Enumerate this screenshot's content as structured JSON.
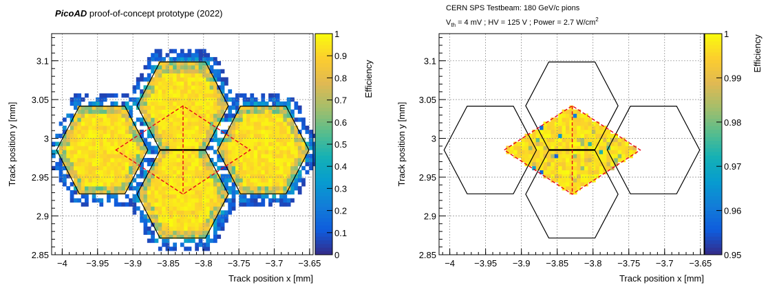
{
  "chart_data": [
    {
      "type": "heatmap",
      "title_bold": "PicoAD",
      "title_rest": " proof-of-concept prototype (2022)",
      "xlabel": "Track position x [mm]",
      "ylabel": "Track position y [mm]",
      "zlabel": "Efficiency",
      "xlim": [
        -4.015,
        -3.645
      ],
      "ylim": [
        2.85,
        3.135
      ],
      "zlim": [
        0,
        1
      ],
      "xticks": [
        "-4",
        "-3.95",
        "-3.9",
        "-3.85",
        "-3.8",
        "-3.75",
        "-3.7",
        "-3.65"
      ],
      "yticks": [
        "2.85",
        "2.9",
        "2.95",
        "3",
        "3.05",
        "3.1"
      ],
      "zticks": [
        "0",
        "0.1",
        "0.2",
        "0.3",
        "0.4",
        "0.5",
        "0.6",
        "0.7",
        "0.8",
        "0.9",
        "1"
      ],
      "grid": true,
      "colormap": "viridis-like (blue to yellow)",
      "overlay": "hexagonal pixel outlines (black) with dashed triangular fiducial region (red)"
    },
    {
      "type": "heatmap",
      "title_line1": "CERN SPS Testbeam: 180 GeV/c pions",
      "title_line2_a": "V",
      "title_line2_sub": "th",
      "title_line2_b": " = 4 mV ; HV = 125 V ; Power = 2.7 W/cm",
      "title_line2_sup": "2",
      "xlabel": "Track position x [mm]",
      "ylabel": "Track position y [mm]",
      "zlabel": "Efficiency",
      "xlim": [
        -4.015,
        -3.645
      ],
      "ylim": [
        2.85,
        3.135
      ],
      "zlim": [
        0.95,
        1
      ],
      "xticks": [
        "-4",
        "-3.95",
        "-3.9",
        "-3.85",
        "-3.8",
        "-3.75",
        "-3.7",
        "-3.65"
      ],
      "yticks": [
        "2.85",
        "2.9",
        "2.95",
        "3",
        "3.05",
        "3.1"
      ],
      "zticks": [
        "0.95",
        "0.96",
        "0.97",
        "0.98",
        "0.99",
        "1"
      ],
      "grid": true,
      "colormap": "viridis-like (blue to yellow)",
      "overlay": "hexagonal pixel outlines (black) with dashed diamond fiducial region (red)"
    }
  ],
  "colors": {
    "accent_dashed": "#e8001c",
    "outline": "#000000",
    "efficiency_high": "#f5e51b",
    "efficiency_low": "#352a87"
  }
}
